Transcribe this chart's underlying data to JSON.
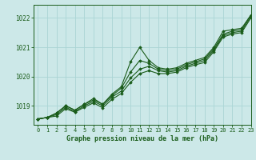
{
  "title": "Graphe pression niveau de la mer (hPa)",
  "bg_color": "#cce8e8",
  "grid_color": "#aad4d4",
  "line_color": "#1a5c1a",
  "marker_color": "#1a5c1a",
  "xmin": -0.5,
  "xmax": 23,
  "ymin": 1018.35,
  "ymax": 1022.45,
  "yticks": [
    1019,
    1020,
    1021,
    1022
  ],
  "xticks": [
    0,
    1,
    2,
    3,
    4,
    5,
    6,
    7,
    8,
    9,
    10,
    11,
    12,
    13,
    14,
    15,
    16,
    17,
    18,
    19,
    20,
    21,
    22,
    23
  ],
  "series": [
    [
      1018.55,
      1018.6,
      1018.75,
      1019.0,
      1018.85,
      1019.05,
      1019.25,
      1019.05,
      1019.4,
      1019.65,
      1020.5,
      1021.0,
      1020.55,
      1020.3,
      1020.25,
      1020.3,
      1020.45,
      1020.55,
      1020.65,
      1021.0,
      1021.55,
      1021.6,
      1021.65,
      1022.1
    ],
    [
      1018.55,
      1018.6,
      1018.75,
      1019.0,
      1018.85,
      1019.05,
      1019.2,
      1019.05,
      1019.35,
      1019.6,
      1020.15,
      1020.55,
      1020.45,
      1020.25,
      1020.2,
      1020.25,
      1020.4,
      1020.5,
      1020.6,
      1020.95,
      1021.45,
      1021.55,
      1021.6,
      1022.1
    ],
    [
      1018.55,
      1018.6,
      1018.7,
      1018.95,
      1018.8,
      1019.0,
      1019.15,
      1019.0,
      1019.3,
      1019.5,
      1019.95,
      1020.25,
      1020.35,
      1020.2,
      1020.15,
      1020.2,
      1020.35,
      1020.45,
      1020.55,
      1020.9,
      1021.4,
      1021.5,
      1021.55,
      1022.05
    ],
    [
      1018.55,
      1018.6,
      1018.65,
      1018.9,
      1018.78,
      1018.95,
      1019.1,
      1018.93,
      1019.22,
      1019.42,
      1019.8,
      1020.1,
      1020.2,
      1020.1,
      1020.1,
      1020.15,
      1020.3,
      1020.4,
      1020.48,
      1020.85,
      1021.35,
      1021.45,
      1021.5,
      1022.0
    ]
  ]
}
